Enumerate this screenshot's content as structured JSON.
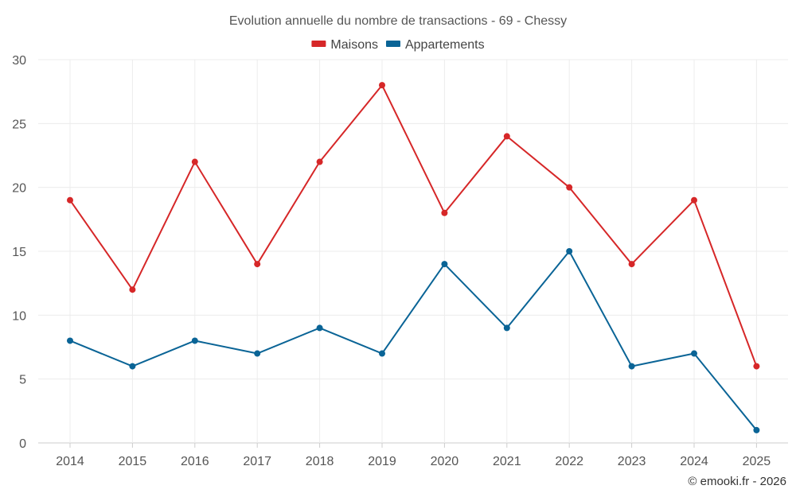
{
  "chart_data": {
    "type": "line",
    "title": "Evolution annuelle du nombre de transactions - 69 - Chessy",
    "categories": [
      "2014",
      "2015",
      "2016",
      "2017",
      "2018",
      "2019",
      "2020",
      "2021",
      "2022",
      "2023",
      "2024",
      "2025"
    ],
    "series": [
      {
        "name": "Maisons",
        "color": "#d62728",
        "values": [
          19,
          12,
          22,
          14,
          22,
          28,
          18,
          24,
          20,
          14,
          19,
          6
        ]
      },
      {
        "name": "Appartements",
        "color": "#0a6496",
        "values": [
          8,
          6,
          8,
          7,
          9,
          7,
          14,
          9,
          15,
          6,
          7,
          1
        ]
      }
    ],
    "ylim": [
      0,
      30
    ],
    "yticks": [
      0,
      5,
      10,
      15,
      20,
      25,
      30
    ],
    "xlabel": "",
    "ylabel": "",
    "grid": true,
    "legend": "top-center"
  },
  "credit": "© emooki.fr - 2026"
}
